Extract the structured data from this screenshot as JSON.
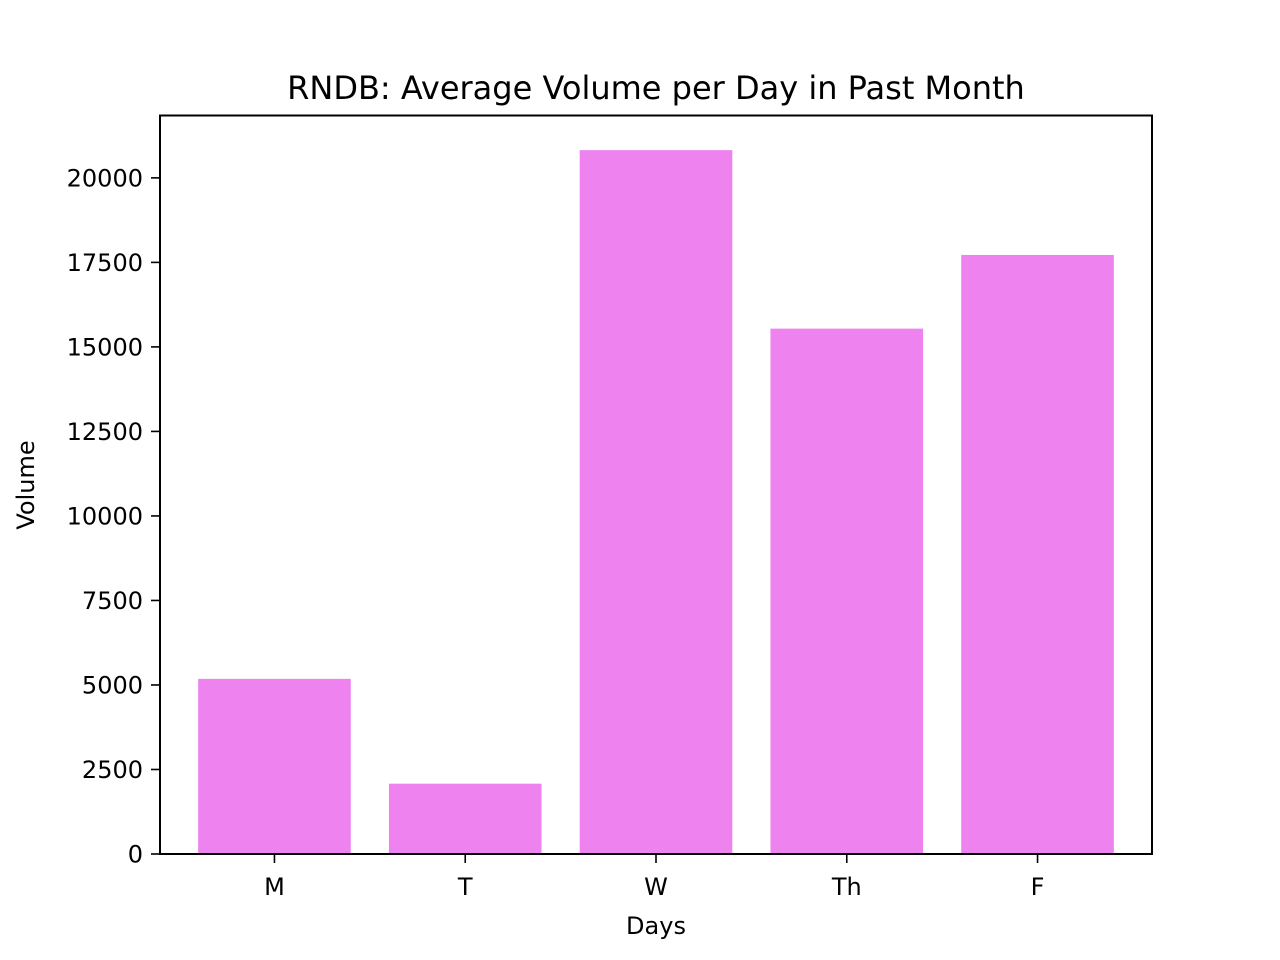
{
  "chart_data": {
    "type": "bar",
    "title": "RNDB: Average Volume per Day in Past Month",
    "xlabel": "Days",
    "ylabel": "Volume",
    "categories": [
      "M",
      "T",
      "W",
      "Th",
      "F"
    ],
    "values": [
      5180,
      2080,
      20820,
      15540,
      17720
    ],
    "ylim": [
      0,
      21845
    ],
    "yticks": [
      0,
      2500,
      5000,
      7500,
      10000,
      12500,
      15000,
      17500,
      20000
    ],
    "ytick_labels": [
      "0",
      "2500",
      "5000",
      "7500",
      "10000",
      "12500",
      "15000",
      "17500",
      "20000"
    ],
    "bar_color": "#ee82ee",
    "grid": false,
    "legend": "none"
  }
}
